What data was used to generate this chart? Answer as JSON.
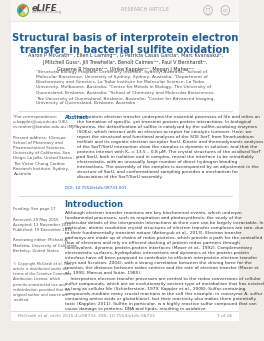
{
  "bg_color": "#f0ede8",
  "white_color": "#ffffff",
  "title": "Structural basis of interprotein electron\ntransfer in bacterial sulfite oxidation",
  "title_color": "#1a5fa8",
  "title_fontsize": 7.2,
  "authors": "Aaron P McGrathᵐʳ, Ellen L Lamingᵐʳ, G Patricia Casas Garcia¹, Marc Kvansakul²,\nJ Mitchell Guss², Jill Trewhella², Benoît Calmes³ʳ², Paul V Bernhardt³ʳ,\nGraeme R Hanson³ʳⁿ, Ulrike Kappler³ʳⁿ, Megan J Maherᵐⁿ",
  "authors_color": "#333333",
  "authors_fontsize": 3.5,
  "affiliations": "¹Structural Biology Program, Centenary Institute, Sydney, Australia; ²School of\nMolecular Bioscience, University of Sydney, Sydney, Australia; ³Department of\nBiochemistry and Genetics, La Trobe Institute for Molecular Science, La Trobe\nUniversity, Melbourne, Australia; ⁴Centre for Metals in Biology, The University of\nQueensland, Brisbane, Australia; ⁵School of Chemistry and Molecular Biosciences,\nThe University of Queensland, Brisbane, Australia; ⁶Centre for Advanced Imaging,\nUniversity of Queensland, Brisbane, Australia",
  "affiliations_color": "#555555",
  "affiliations_fontsize": 3.2,
  "abstract_label": "Abstract",
  "abstract_label_color": "#1a5fa8",
  "abstract_text": "Interprotein electron transfer underpins the essential processes of life and relies on the formation of specific, yet transient protein-protein interactions. In biological systems, the detoxification of sulfite is catalysed by the sulfite-oxidising enzymes (SOEs), which interact with an electron acceptor for catalytic turnover. Here, we report the structural and functional analyses of the SOE SorT from Sinorhizobium meliloti and its cognate electron acceptor SorU. Kinetic and thermodynamic analyses of the SorT/SorU interaction show the complex is dynamic in solution, and that the proteins interact with K₉ = 13.5 – 0.8 μM. The crystal structures of the oxidised SorT and SorU, both in isolation and in complex, reveal the interface to be remarkably electrostatic, with an unusually large number of direct hydrogen bonding interactions. The assembly of the complex is accompanied by an adjustment in the structure of SorU, and conformational sampling provides a mechanism for dissociation of the SorT/SorU assembly.",
  "abstract_color": "#333333",
  "abstract_fontsize": 3.2,
  "doi_text": "DOI: 10.7554/eLife.08733.001",
  "doi_color": "#1a5fa8",
  "doi_fontsize": 3.0,
  "intro_title": "Introduction",
  "intro_title_color": "#1a5fa8",
  "intro_fontsize": 6.0,
  "intro_text": "Although electron transfer reactions are key biochemical events, which underpin fundamental processes, such as respiration and photosynthesis, the study of the molecular details of the interprotein interactions at their core can be largely intractable. In particular, atomic resolution crystal structures of electron transfer complexes are rare, due to their fundamentally transient nature (Antonyuk et al., 2013). Electron transfer pathways are made up of chains of redox proteins, which provide a path for the controlled flow of electrons and rely on efficient docking of protein redox partners through noncovalent, dynamic protein-protein interfaces (Moser et al., 1992). Complementary electrostatic surfaces, hydrophobic interactions and dynamics at the protein-protein interface have all been proposed to contribute to efficient interprotein electron transfer (Leys and Scrutton, 2004), with a strong correlation between the driving force for the reaction, the distance between redox centers and the rate of electron transfer (Moser et al., 1995; Marcus and Sutin, 1985).\n    Interprotein electron transfer processes are central to the redox conversions of cellular sulfur compounds, which are an evolutionarily ancient type of metabolism that has existed as long as cellular life (Schieferstein, 1979; Kappler et al., 2008). Sulfur-containing compounds mediate many crucial reactions in the cell (for example, in coenzyme A, sulfur containing amino acids or glutathione), but their reactivity also makes them potentially toxic (Kappler, 2011). Sulfite in particular, is a highly reactive sulfur compound that can cause damage to proteins, DNA and lipids, resulting in oxidative",
  "intro_text_color": "#333333",
  "intro_text_fontsize": 3.2,
  "sidebar_text": "*For correspondence:\nu.kappler@uq.edu.au (UK);\nm.maher@latrobe.edu.au (MJM)\n\nPresent address: †Groupe\nSchool of Pharmacy and\nPharmaceutical Sciences,\nUniversity of California, San\nDiego, La Jolla, United States ; ‡\nThe Victor Chang Cardiac\nResearch Institute, Sydney,\nAustralia",
  "sidebar_color": "#555555",
  "sidebar_fontsize": 3.0,
  "footer_text": "McGrath et al. eLife 2015;4:e08733. DOI: 10.7554/eLife.08733",
  "footer_doi": "1 of 26",
  "footer_color": "#888888",
  "footer_fontsize": 3.2,
  "research_article_text": "RESEARCH ARTICLE",
  "research_article_color": "#aaaaaa",
  "research_article_fontsize": 3.5,
  "elife_color": "#6db33f",
  "line_color": "#cccccc"
}
